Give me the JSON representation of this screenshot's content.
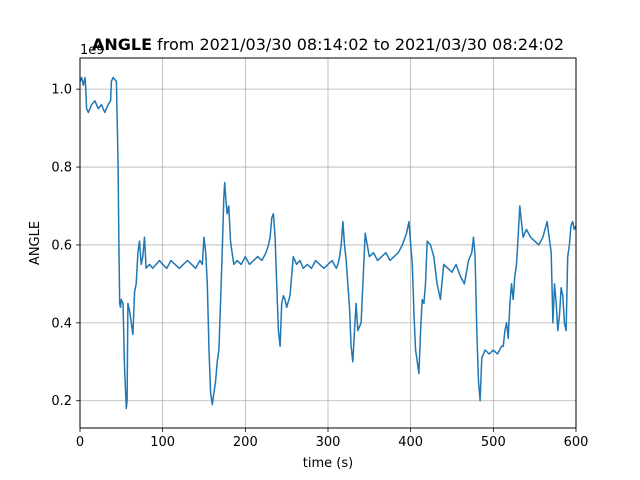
{
  "chart_data": {
    "type": "line",
    "title_bold": "ANGLE",
    "title_rest": " from 2021/03/30 08:14:02 to 2021/03/30 08:24:02",
    "xlabel": "time (s)",
    "ylabel": "ANGLE",
    "offset_text": "1e9",
    "xlim": [
      0,
      600
    ],
    "ylim": [
      0.13,
      1.08
    ],
    "xticks": [
      0,
      100,
      200,
      300,
      400,
      500,
      600
    ],
    "xtick_labels": [
      "0",
      "100",
      "200",
      "300",
      "400",
      "500",
      "600"
    ],
    "yticks": [
      0.2,
      0.4,
      0.6,
      0.8,
      1.0
    ],
    "ytick_labels": [
      "0.2",
      "0.4",
      "0.6",
      "0.8",
      "1.0"
    ],
    "grid": true,
    "color": "#1f77b4",
    "x": [
      0,
      2,
      4,
      6,
      7,
      8,
      10,
      14,
      18,
      22,
      26,
      30,
      34,
      37,
      38,
      40,
      44,
      46,
      47,
      48,
      49,
      50,
      52,
      54,
      56,
      57,
      58,
      60,
      62,
      64,
      66,
      68,
      70,
      72,
      74,
      76,
      78,
      80,
      84,
      88,
      92,
      96,
      100,
      105,
      110,
      115,
      120,
      125,
      130,
      135,
      140,
      145,
      148,
      150,
      152,
      154,
      156,
      158,
      160,
      162,
      164,
      166,
      168,
      170,
      172,
      174,
      175,
      176,
      178,
      180,
      182,
      184,
      186,
      190,
      195,
      200,
      205,
      210,
      215,
      220,
      225,
      228,
      230,
      232,
      234,
      236,
      238,
      240,
      242,
      244,
      246,
      248,
      250,
      254,
      258,
      262,
      266,
      270,
      275,
      280,
      285,
      290,
      295,
      300,
      305,
      310,
      312,
      314,
      316,
      318,
      320,
      322,
      324,
      326,
      328,
      330,
      332,
      334,
      336,
      340,
      345,
      350,
      355,
      360,
      365,
      370,
      375,
      380,
      385,
      390,
      395,
      398,
      400,
      402,
      404,
      406,
      408,
      410,
      412,
      414,
      416,
      418,
      420,
      424,
      428,
      432,
      436,
      440,
      445,
      450,
      455,
      460,
      465,
      470,
      474,
      476,
      478,
      480,
      482,
      484,
      486,
      490,
      495,
      500,
      505,
      510,
      512,
      514,
      516,
      518,
      520,
      522,
      524,
      526,
      528,
      530,
      532,
      534,
      536,
      540,
      545,
      550,
      555,
      560,
      565,
      570,
      572,
      574,
      576,
      578,
      580,
      582,
      584,
      586,
      588,
      590,
      592,
      594,
      596,
      598,
      600
    ],
    "y": [
      1.02,
      1.03,
      1.01,
      1.03,
      1.0,
      0.95,
      0.94,
      0.96,
      0.97,
      0.95,
      0.96,
      0.94,
      0.96,
      0.97,
      1.02,
      1.03,
      1.02,
      0.82,
      0.6,
      0.45,
      0.44,
      0.46,
      0.45,
      0.28,
      0.18,
      0.2,
      0.45,
      0.43,
      0.4,
      0.37,
      0.48,
      0.5,
      0.58,
      0.61,
      0.55,
      0.57,
      0.62,
      0.54,
      0.55,
      0.54,
      0.55,
      0.56,
      0.55,
      0.54,
      0.56,
      0.55,
      0.54,
      0.55,
      0.56,
      0.55,
      0.54,
      0.56,
      0.55,
      0.62,
      0.58,
      0.5,
      0.33,
      0.22,
      0.19,
      0.22,
      0.25,
      0.3,
      0.33,
      0.45,
      0.58,
      0.72,
      0.76,
      0.73,
      0.68,
      0.7,
      0.61,
      0.58,
      0.55,
      0.56,
      0.55,
      0.57,
      0.55,
      0.56,
      0.57,
      0.56,
      0.58,
      0.6,
      0.62,
      0.67,
      0.68,
      0.62,
      0.5,
      0.38,
      0.34,
      0.45,
      0.47,
      0.46,
      0.44,
      0.47,
      0.57,
      0.55,
      0.56,
      0.54,
      0.55,
      0.54,
      0.56,
      0.55,
      0.54,
      0.55,
      0.56,
      0.54,
      0.55,
      0.57,
      0.6,
      0.66,
      0.6,
      0.56,
      0.5,
      0.44,
      0.34,
      0.3,
      0.38,
      0.45,
      0.38,
      0.4,
      0.63,
      0.57,
      0.58,
      0.56,
      0.57,
      0.58,
      0.56,
      0.57,
      0.58,
      0.6,
      0.63,
      0.66,
      0.6,
      0.55,
      0.42,
      0.33,
      0.3,
      0.27,
      0.38,
      0.46,
      0.45,
      0.5,
      0.61,
      0.6,
      0.57,
      0.5,
      0.46,
      0.55,
      0.54,
      0.53,
      0.55,
      0.52,
      0.5,
      0.56,
      0.58,
      0.62,
      0.57,
      0.38,
      0.25,
      0.2,
      0.31,
      0.33,
      0.32,
      0.33,
      0.32,
      0.34,
      0.34,
      0.38,
      0.4,
      0.36,
      0.45,
      0.5,
      0.46,
      0.52,
      0.55,
      0.62,
      0.7,
      0.66,
      0.62,
      0.64,
      0.62,
      0.61,
      0.6,
      0.62,
      0.66,
      0.58,
      0.4,
      0.5,
      0.45,
      0.38,
      0.42,
      0.49,
      0.47,
      0.4,
      0.38,
      0.57,
      0.6,
      0.65,
      0.66,
      0.64,
      0.65
    ]
  }
}
